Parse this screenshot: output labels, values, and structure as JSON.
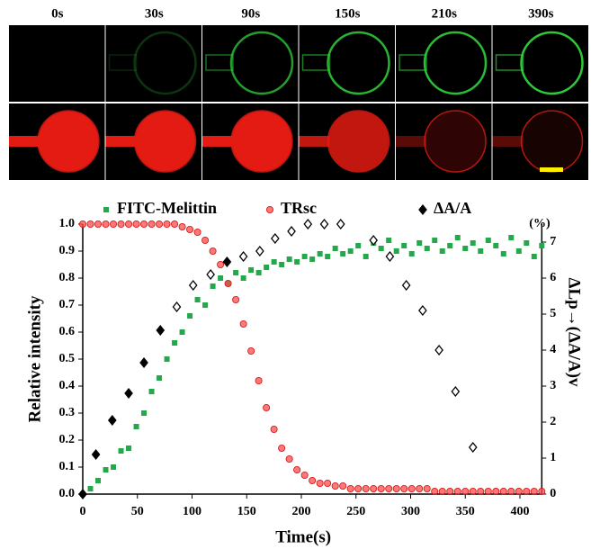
{
  "panels": {
    "labels": [
      "0s",
      "30s",
      "90s",
      "150s",
      "210s",
      "390s"
    ]
  },
  "chart_data": {
    "type": "scatter",
    "xlabel": "Time(s)",
    "ylabel": "Relative intensity",
    "y2label": "ΔLp→(ΔA/A)v",
    "y2unit": "(%)",
    "xlim": [
      0,
      420
    ],
    "xticks": [
      0,
      50,
      100,
      150,
      200,
      250,
      300,
      350,
      400
    ],
    "ylim": [
      0,
      1
    ],
    "yticks": [
      {
        "value": 0,
        "label": "0.0"
      },
      0.1,
      0.2,
      0.3,
      0.4,
      0.5,
      0.6,
      0.7,
      0.8,
      0.9,
      {
        "value": 1,
        "label": "1.0"
      }
    ],
    "y2lim": [
      0,
      7.5
    ],
    "y2ticks": [
      0,
      1,
      2,
      3,
      4,
      5,
      6,
      7
    ],
    "series": [
      {
        "name": "FITC-Melittin",
        "color": "#22aa4a",
        "marker": "square",
        "x": [
          0,
          7,
          14,
          21,
          28,
          35,
          42,
          49,
          56,
          63,
          70,
          77,
          84,
          91,
          98,
          105,
          112,
          119,
          126,
          133,
          140,
          147,
          154,
          161,
          168,
          175,
          182,
          189,
          196,
          203,
          210,
          217,
          224,
          231,
          238,
          245,
          252,
          259,
          266,
          273,
          280,
          287,
          294,
          301,
          308,
          315,
          322,
          329,
          336,
          343,
          350,
          357,
          364,
          371,
          378,
          385,
          392,
          399,
          406,
          413,
          420
        ],
        "values": [
          0.0,
          0.02,
          0.05,
          0.09,
          0.1,
          0.16,
          0.17,
          0.25,
          0.3,
          0.38,
          0.43,
          0.5,
          0.56,
          0.6,
          0.66,
          0.72,
          0.7,
          0.77,
          0.8,
          0.78,
          0.82,
          0.8,
          0.83,
          0.82,
          0.84,
          0.86,
          0.85,
          0.87,
          0.86,
          0.88,
          0.87,
          0.89,
          0.88,
          0.91,
          0.89,
          0.9,
          0.92,
          0.88,
          0.93,
          0.91,
          0.94,
          0.9,
          0.92,
          0.89,
          0.93,
          0.91,
          0.94,
          0.9,
          0.92,
          0.95,
          0.91,
          0.93,
          0.9,
          0.94,
          0.92,
          0.89,
          0.95,
          0.9,
          0.93,
          0.88,
          0.92
        ]
      },
      {
        "name": "TRsc",
        "color": "#ff4a4a",
        "marker": "circle",
        "x": [
          0,
          7,
          14,
          21,
          28,
          35,
          42,
          49,
          56,
          63,
          70,
          77,
          84,
          91,
          98,
          105,
          112,
          119,
          126,
          133,
          140,
          147,
          154,
          161,
          168,
          175,
          182,
          189,
          196,
          203,
          210,
          217,
          224,
          231,
          238,
          245,
          252,
          259,
          266,
          273,
          280,
          287,
          294,
          301,
          308,
          315,
          322,
          329,
          336,
          343,
          350,
          357,
          364,
          371,
          378,
          385,
          392,
          399,
          406,
          413,
          420
        ],
        "values": [
          1.0,
          1.0,
          1.0,
          1.0,
          1.0,
          1.0,
          1.0,
          1.0,
          1.0,
          1.0,
          1.0,
          1.0,
          1.0,
          0.99,
          0.98,
          0.97,
          0.94,
          0.9,
          0.85,
          0.78,
          0.72,
          0.63,
          0.53,
          0.42,
          0.32,
          0.24,
          0.17,
          0.13,
          0.09,
          0.07,
          0.05,
          0.04,
          0.04,
          0.03,
          0.03,
          0.02,
          0.02,
          0.02,
          0.02,
          0.02,
          0.02,
          0.02,
          0.02,
          0.02,
          0.02,
          0.02,
          0.01,
          0.01,
          0.01,
          0.01,
          0.01,
          0.01,
          0.01,
          0.01,
          0.01,
          0.01,
          0.01,
          0.01,
          0.01,
          0.01,
          0.01
        ]
      },
      {
        "name": "ΔA/A",
        "color": "#000000",
        "marker": "diamond",
        "axis": "y2",
        "x": [
          0,
          12,
          27,
          42,
          56,
          71,
          86,
          101,
          117,
          132,
          147,
          162,
          176,
          191,
          206,
          221,
          236,
          266,
          281,
          296,
          311,
          326,
          341,
          357
        ],
        "filled": [
          true,
          true,
          true,
          true,
          true,
          true,
          false,
          false,
          false,
          true,
          false,
          false,
          false,
          false,
          false,
          false,
          false,
          false,
          false,
          false,
          false,
          false,
          false,
          false
        ],
        "values": [
          0,
          1.1,
          2.05,
          2.8,
          3.65,
          4.55,
          5.2,
          5.8,
          6.1,
          6.45,
          6.6,
          6.75,
          7.1,
          7.3,
          7.5,
          7.5,
          7.5,
          7.05,
          6.6,
          5.8,
          5.1,
          4.0,
          2.85,
          1.3
        ]
      }
    ]
  }
}
